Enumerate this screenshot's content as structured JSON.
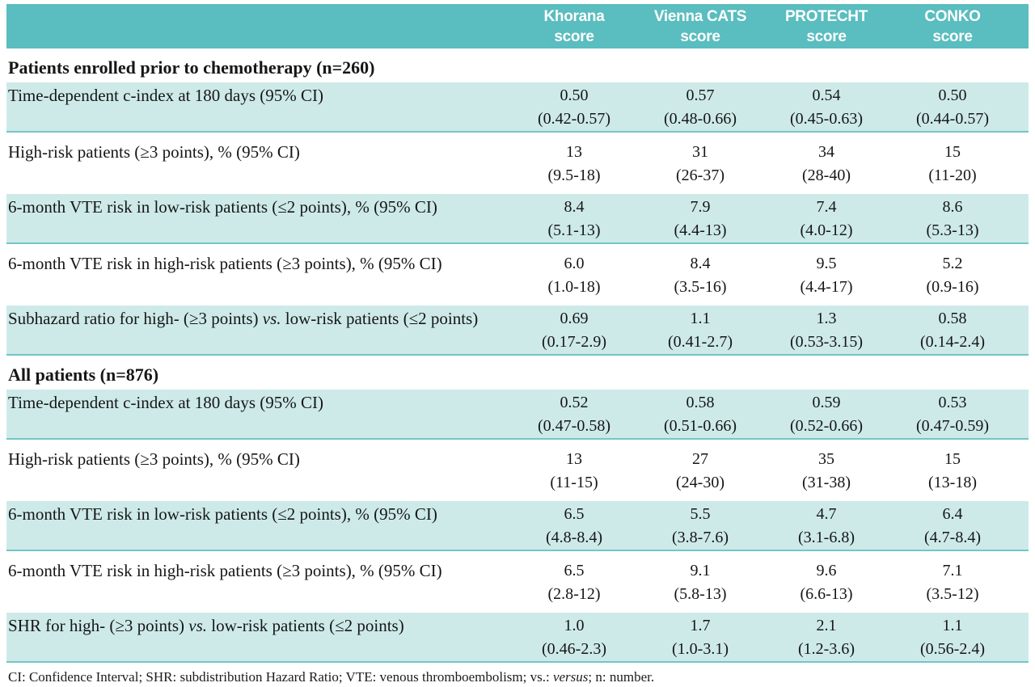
{
  "header": {
    "columns": [
      {
        "line1": "Khorana",
        "line2": "score"
      },
      {
        "line1": "Vienna CATS",
        "line2": "score"
      },
      {
        "line1": "PROTECHT",
        "line2": "score"
      },
      {
        "line1": "CONKO",
        "line2": "score"
      }
    ]
  },
  "colors": {
    "header_bg": "#5abdbf",
    "band_bg": "#cdeae9",
    "separator": "#72c6c7",
    "header_text": "#ffffff",
    "body_text": "#161616"
  },
  "sections": [
    {
      "title": "Patients enrolled prior to chemotherapy (n=260)",
      "rows": [
        {
          "label_pre": "Time-dependent c-index at 180 days (95% CI)",
          "label_italic": "",
          "label_post": "",
          "values": [
            "0.50",
            "0.57",
            "0.54",
            "0.50"
          ],
          "cis": [
            "(0.42-0.57)",
            "(0.48-0.66)",
            "(0.45-0.63)",
            "(0.44-0.57)"
          ]
        },
        {
          "label_pre": "High-risk patients (≥3 points), % (95% CI)",
          "label_italic": "",
          "label_post": "",
          "values": [
            "13",
            "31",
            "34",
            "15"
          ],
          "cis": [
            "(9.5-18)",
            "(26-37)",
            "(28-40)",
            "(11-20)"
          ]
        },
        {
          "label_pre": "6-month VTE risk in low-risk patients (≤2 points), % (95% CI)",
          "label_italic": "",
          "label_post": "",
          "values": [
            "8.4",
            "7.9",
            "7.4",
            "8.6"
          ],
          "cis": [
            "(5.1-13)",
            "(4.4-13)",
            "(4.0-12)",
            "(5.3-13)"
          ]
        },
        {
          "label_pre": "6-month VTE risk in high-risk patients (≥3 points), % (95% CI)",
          "label_italic": "",
          "label_post": "",
          "values": [
            "6.0",
            "8.4",
            "9.5",
            "5.2"
          ],
          "cis": [
            "(1.0-18)",
            "(3.5-16)",
            "(4.4-17)",
            "(0.9-16)"
          ]
        },
        {
          "label_pre": "Subhazard ratio for high- (≥3 points) ",
          "label_italic": "vs.",
          "label_post": " low-risk patients (≤2 points)",
          "values": [
            "0.69",
            "1.1",
            "1.3",
            "0.58"
          ],
          "cis": [
            "(0.17-2.9)",
            "(0.41-2.7)",
            "(0.53-3.15)",
            "(0.14-2.4)"
          ]
        }
      ]
    },
    {
      "title": "All patients (n=876)",
      "rows": [
        {
          "label_pre": "Time-dependent c-index at 180 days (95% CI)",
          "label_italic": "",
          "label_post": "",
          "values": [
            "0.52",
            "0.58",
            "0.59",
            "0.53"
          ],
          "cis": [
            "(0.47-0.58)",
            "(0.51-0.66)",
            "(0.52-0.66)",
            "(0.47-0.59)"
          ]
        },
        {
          "label_pre": "High-risk patients (≥3 points), % (95% CI)",
          "label_italic": "",
          "label_post": "",
          "values": [
            "13",
            "27",
            "35",
            "15"
          ],
          "cis": [
            "(11-15)",
            "(24-30)",
            "(31-38)",
            "(13-18)"
          ]
        },
        {
          "label_pre": "6-month VTE risk in low-risk patients (≤2 points), % (95% CI)",
          "label_italic": "",
          "label_post": "",
          "values": [
            "6.5",
            "5.5",
            "4.7",
            "6.4"
          ],
          "cis": [
            "(4.8-8.4)",
            "(3.8-7.6)",
            "(3.1-6.8)",
            "(4.7-8.4)"
          ]
        },
        {
          "label_pre": "6-month VTE risk in high-risk patients (≥3 points), % (95% CI)",
          "label_italic": "",
          "label_post": "",
          "values": [
            "6.5",
            "9.1",
            "9.6",
            "7.1"
          ],
          "cis": [
            "(2.8-12)",
            "(5.8-13)",
            "(6.6-13)",
            "(3.5-12)"
          ]
        },
        {
          "label_pre": "SHR for high- (≥3 points) ",
          "label_italic": "vs.",
          "label_post": " low-risk patients (≤2 points)",
          "values": [
            "1.0",
            "1.7",
            "2.1",
            "1.1"
          ],
          "cis": [
            "(0.46-2.3)",
            "(1.0-3.1)",
            "(1.2-3.6)",
            "(0.56-2.4)"
          ]
        }
      ]
    }
  ],
  "footnote": {
    "pre": "CI: Confidence Interval; SHR: subdistribution Hazard Ratio; VTE: venous thromboembolism; vs.: ",
    "italic": "versus",
    "post": "; n: number."
  }
}
